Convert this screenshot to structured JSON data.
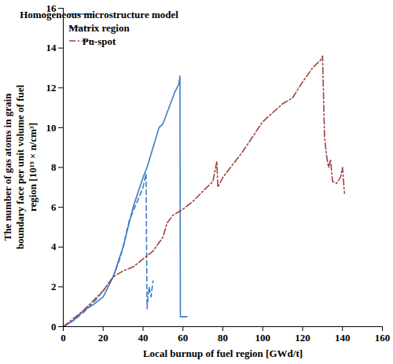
{
  "chart_data": {
    "type": "line",
    "xlabel": "Local burnup of fuel region [GWd/t]",
    "ylabel": [
      "The number of gas atoms in grain",
      "boundary face per unit volume of fuel",
      "region [10¹⁹ × n/cm³]"
    ],
    "xlim": [
      0,
      160
    ],
    "xticks": [
      0,
      20,
      40,
      60,
      80,
      100,
      120,
      140,
      160
    ],
    "ylim": [
      0,
      16
    ],
    "yticks": [
      0,
      2,
      4,
      6,
      8,
      10,
      12,
      14,
      16
    ],
    "grid": false,
    "legend": "top-left",
    "series": [
      {
        "name": "Homogeneous microstructure model",
        "color": "#3b7dc4",
        "line_style": "solid",
        "x": [
          0,
          5,
          10,
          15,
          20,
          25,
          30,
          35,
          40,
          42,
          45,
          48,
          50,
          53,
          56,
          58,
          58.5,
          58.7,
          62
        ],
        "values": [
          0,
          0.3,
          0.8,
          1.1,
          1.5,
          2.5,
          4,
          6,
          7.5,
          8,
          9,
          10,
          10.2,
          11,
          11.8,
          12.2,
          12.6,
          0.5,
          0.5
        ]
      },
      {
        "name": "Matrix region",
        "color": "#3b7dc4",
        "line_style": "dashed",
        "x": [
          0,
          5,
          10,
          15,
          20,
          25,
          28,
          30,
          33,
          35,
          38,
          40,
          41.5,
          42,
          43,
          44,
          45
        ],
        "values": [
          0,
          0.3,
          0.7,
          1.2,
          1.8,
          2.5,
          3.3,
          4,
          5.3,
          5.8,
          6.5,
          7,
          7.7,
          0.9,
          2.0,
          1.5,
          2.3
        ]
      },
      {
        "name": "Pu-spot",
        "color": "#a0403c",
        "line_style": "dashdot",
        "x": [
          0,
          10,
          20,
          25,
          30,
          35,
          40,
          45,
          50,
          52,
          55,
          60,
          65,
          70,
          75,
          77,
          77.5,
          80,
          90,
          100,
          110,
          115,
          120,
          125,
          129,
          130,
          131,
          132,
          133,
          134,
          135,
          137,
          139,
          140,
          141
        ],
        "values": [
          0,
          0.8,
          1.8,
          2.5,
          2.8,
          3.0,
          3.4,
          3.8,
          4.5,
          5.2,
          5.6,
          5.9,
          6.3,
          6.8,
          7.3,
          8.3,
          7.0,
          7.5,
          8.8,
          10.3,
          11.2,
          11.5,
          12.3,
          13.0,
          13.4,
          13.6,
          9.5,
          8.6,
          8.0,
          8.4,
          7.3,
          7.2,
          7.5,
          8.0,
          6.7
        ]
      }
    ]
  }
}
